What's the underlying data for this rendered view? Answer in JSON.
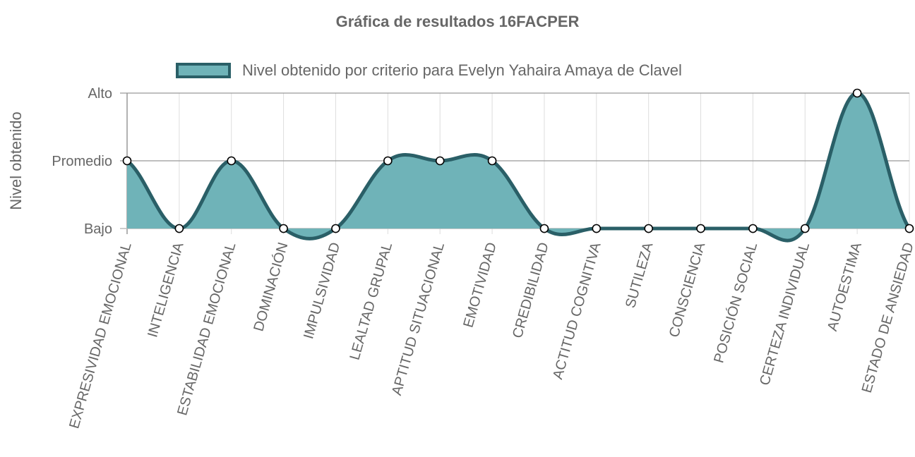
{
  "chart_data": {
    "type": "area",
    "title": "Gráfica de resultados 16FACPER",
    "ylabel": "Nivel obtenido",
    "xlabel": "",
    "y_levels": [
      "Bajo",
      "Promedio",
      "Alto"
    ],
    "ylim": [
      0,
      2
    ],
    "categories": [
      "EXPRESIVIDAD EMOCIONAL",
      "INTELIGENCIA",
      "ESTABILIDAD EMOCIONAL",
      "DOMINACIÓN",
      "IMPULSIVIDAD",
      "LEALTAD GRUPAL",
      "APTITUD SITUACIONAL",
      "EMOTIVIDAD",
      "CREDIBILIDAD",
      "ACTITUD COGNITIVA",
      "SUTILEZA",
      "CONSCIENCIA",
      "POSICIÓN SOCIAL",
      "CERTEZA INDIVIDUAL",
      "AUTOESTIMA",
      "ESTADO DE ANSIEDAD"
    ],
    "series": [
      {
        "name": "Nivel obtenido por criterio para Evelyn Yahaira Amaya de Clavel",
        "values": [
          1,
          0,
          1,
          0,
          0,
          1,
          1,
          1,
          0,
          0,
          0,
          0,
          0,
          0,
          2,
          0
        ],
        "fill_color": "#6fb3b8",
        "line_color": "#2a5f67"
      }
    ],
    "legend_position": "top",
    "grid": true
  }
}
